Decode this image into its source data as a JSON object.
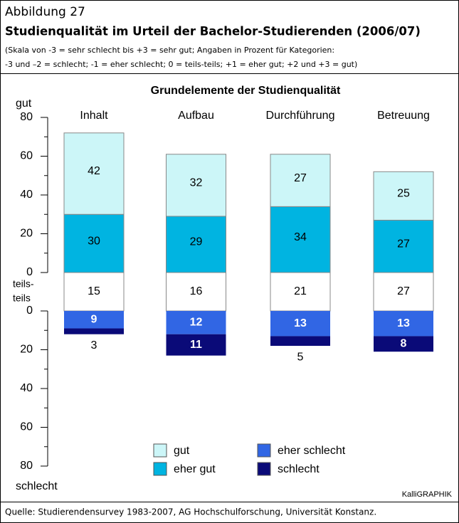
{
  "header": {
    "figure_label": "Abbildung 27",
    "title": "Studienqualität im Urteil der Bachelor-Studierenden (2006/07)",
    "notes": [
      "(Skala von -3 = sehr schlecht bis +3 = sehr gut; Angaben in Prozent für Kategorien:",
      "-3 und –2 = schlecht; -1 = eher schlecht; 0 = teils-teils; +1 = eher gut; +2 und +3 = gut)"
    ]
  },
  "chart_data": {
    "type": "bar",
    "title": "Grundelemente der Studienqualität",
    "y_top_label": "gut",
    "y_mid_label": [
      "teils-",
      "teils"
    ],
    "y_bottom_label": "schlecht",
    "categories": [
      "Inhalt",
      "Aufbau",
      "Durchführung",
      "Betreuung"
    ],
    "series": [
      {
        "name": "gut",
        "color": "#ccf6f8",
        "axis": "y",
        "values": [
          42,
          32,
          27,
          25
        ]
      },
      {
        "name": "eher gut",
        "color": "#00b4e1",
        "axis": "y",
        "values": [
          30,
          29,
          34,
          27
        ]
      },
      {
        "name": "eher schlecht",
        "color": "#3166e4",
        "axis": "y2",
        "values": [
          9,
          12,
          13,
          13
        ]
      },
      {
        "name": "schlecht",
        "color": "#0a0a78",
        "axis": "y2",
        "values": [
          3,
          11,
          5,
          8
        ]
      }
    ],
    "neutral_values": [
      15,
      16,
      21,
      27
    ],
    "neutral_color": "#ffffff",
    "ylim": [
      0,
      80
    ],
    "yticks": [
      0,
      20,
      40,
      60,
      80
    ],
    "yticks_minor": [
      10,
      30,
      50,
      70
    ],
    "y2lim": [
      0,
      80
    ],
    "y2ticks": [
      0,
      20,
      40,
      60,
      80
    ],
    "y2ticks_minor": [
      10,
      30,
      50,
      70
    ]
  },
  "credit": "KalliGRAPHIK",
  "source": "Quelle: Studierendensurvey 1983-2007, AG Hochschulforschung, Universität Konstanz."
}
